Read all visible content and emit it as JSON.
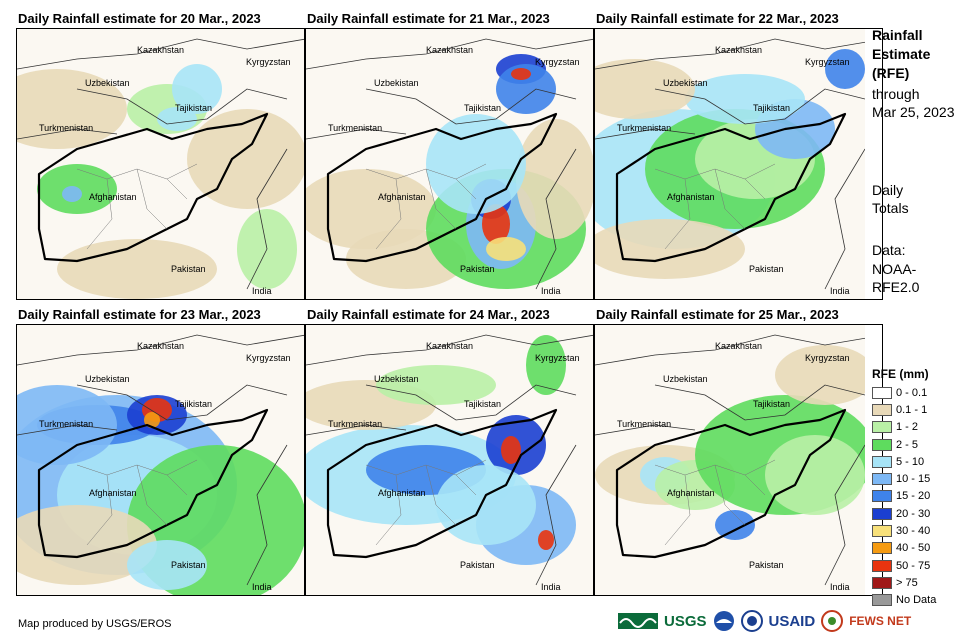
{
  "panels": [
    {
      "title": "Daily Rainfall estimate for 20 Mar., 2023",
      "pattern": "a"
    },
    {
      "title": "Daily Rainfall estimate for 21 Mar., 2023",
      "pattern": "b"
    },
    {
      "title": "Daily Rainfall estimate for 22 Mar., 2023",
      "pattern": "c"
    },
    {
      "title": "Daily Rainfall estimate for 23 Mar., 2023",
      "pattern": "d"
    },
    {
      "title": "Daily Rainfall estimate for 24 Mar., 2023",
      "pattern": "e"
    },
    {
      "title": "Daily Rainfall estimate for 25 Mar., 2023",
      "pattern": "f"
    }
  ],
  "country_labels": {
    "kazakhstan": "Kazakhstan",
    "kyrgyzstan": "Kyrgyzstan",
    "uzbekistan": "Uzbekistan",
    "tajikistan": "Tajikistan",
    "turkmenistan": "Turkmenistan",
    "afghanistan": "Afghanistan",
    "pakistan": "Pakistan",
    "india": "India"
  },
  "side": {
    "title_1": "Rainfall",
    "title_2": "Estimate",
    "title_3": "(RFE)",
    "through": "through",
    "date": "Mar 25, 2023",
    "daily": "Daily",
    "totals": "Totals",
    "data_label": "Data:",
    "source_1": "NOAA-",
    "source_2": "RFE2.0"
  },
  "legend": {
    "title": "RFE (mm)",
    "items": [
      {
        "label": "0 - 0.1",
        "color": "#ffffff"
      },
      {
        "label": "0.1 - 1",
        "color": "#e8d9b8"
      },
      {
        "label": "1 - 2",
        "color": "#b9f0a6"
      },
      {
        "label": "2 - 5",
        "color": "#5edc5e"
      },
      {
        "label": "5 - 10",
        "color": "#a7e4f7"
      },
      {
        "label": "10 - 15",
        "color": "#7db8f5"
      },
      {
        "label": "15 - 20",
        "color": "#3f83ea"
      },
      {
        "label": "20 - 30",
        "color": "#1b3fd1"
      },
      {
        "label": "30 - 40",
        "color": "#f7e07a"
      },
      {
        "label": "40 - 50",
        "color": "#f59b12"
      },
      {
        "label": "50 - 75",
        "color": "#e8340f"
      },
      {
        "label": "> 75",
        "color": "#a01818"
      },
      {
        "label": "No Data",
        "color": "#999999"
      }
    ]
  },
  "footer": "Map produced by USGS/EROS",
  "logos": {
    "usgs": "USGS",
    "usaid": "USAID",
    "fewsnet": "FEWS NET"
  }
}
